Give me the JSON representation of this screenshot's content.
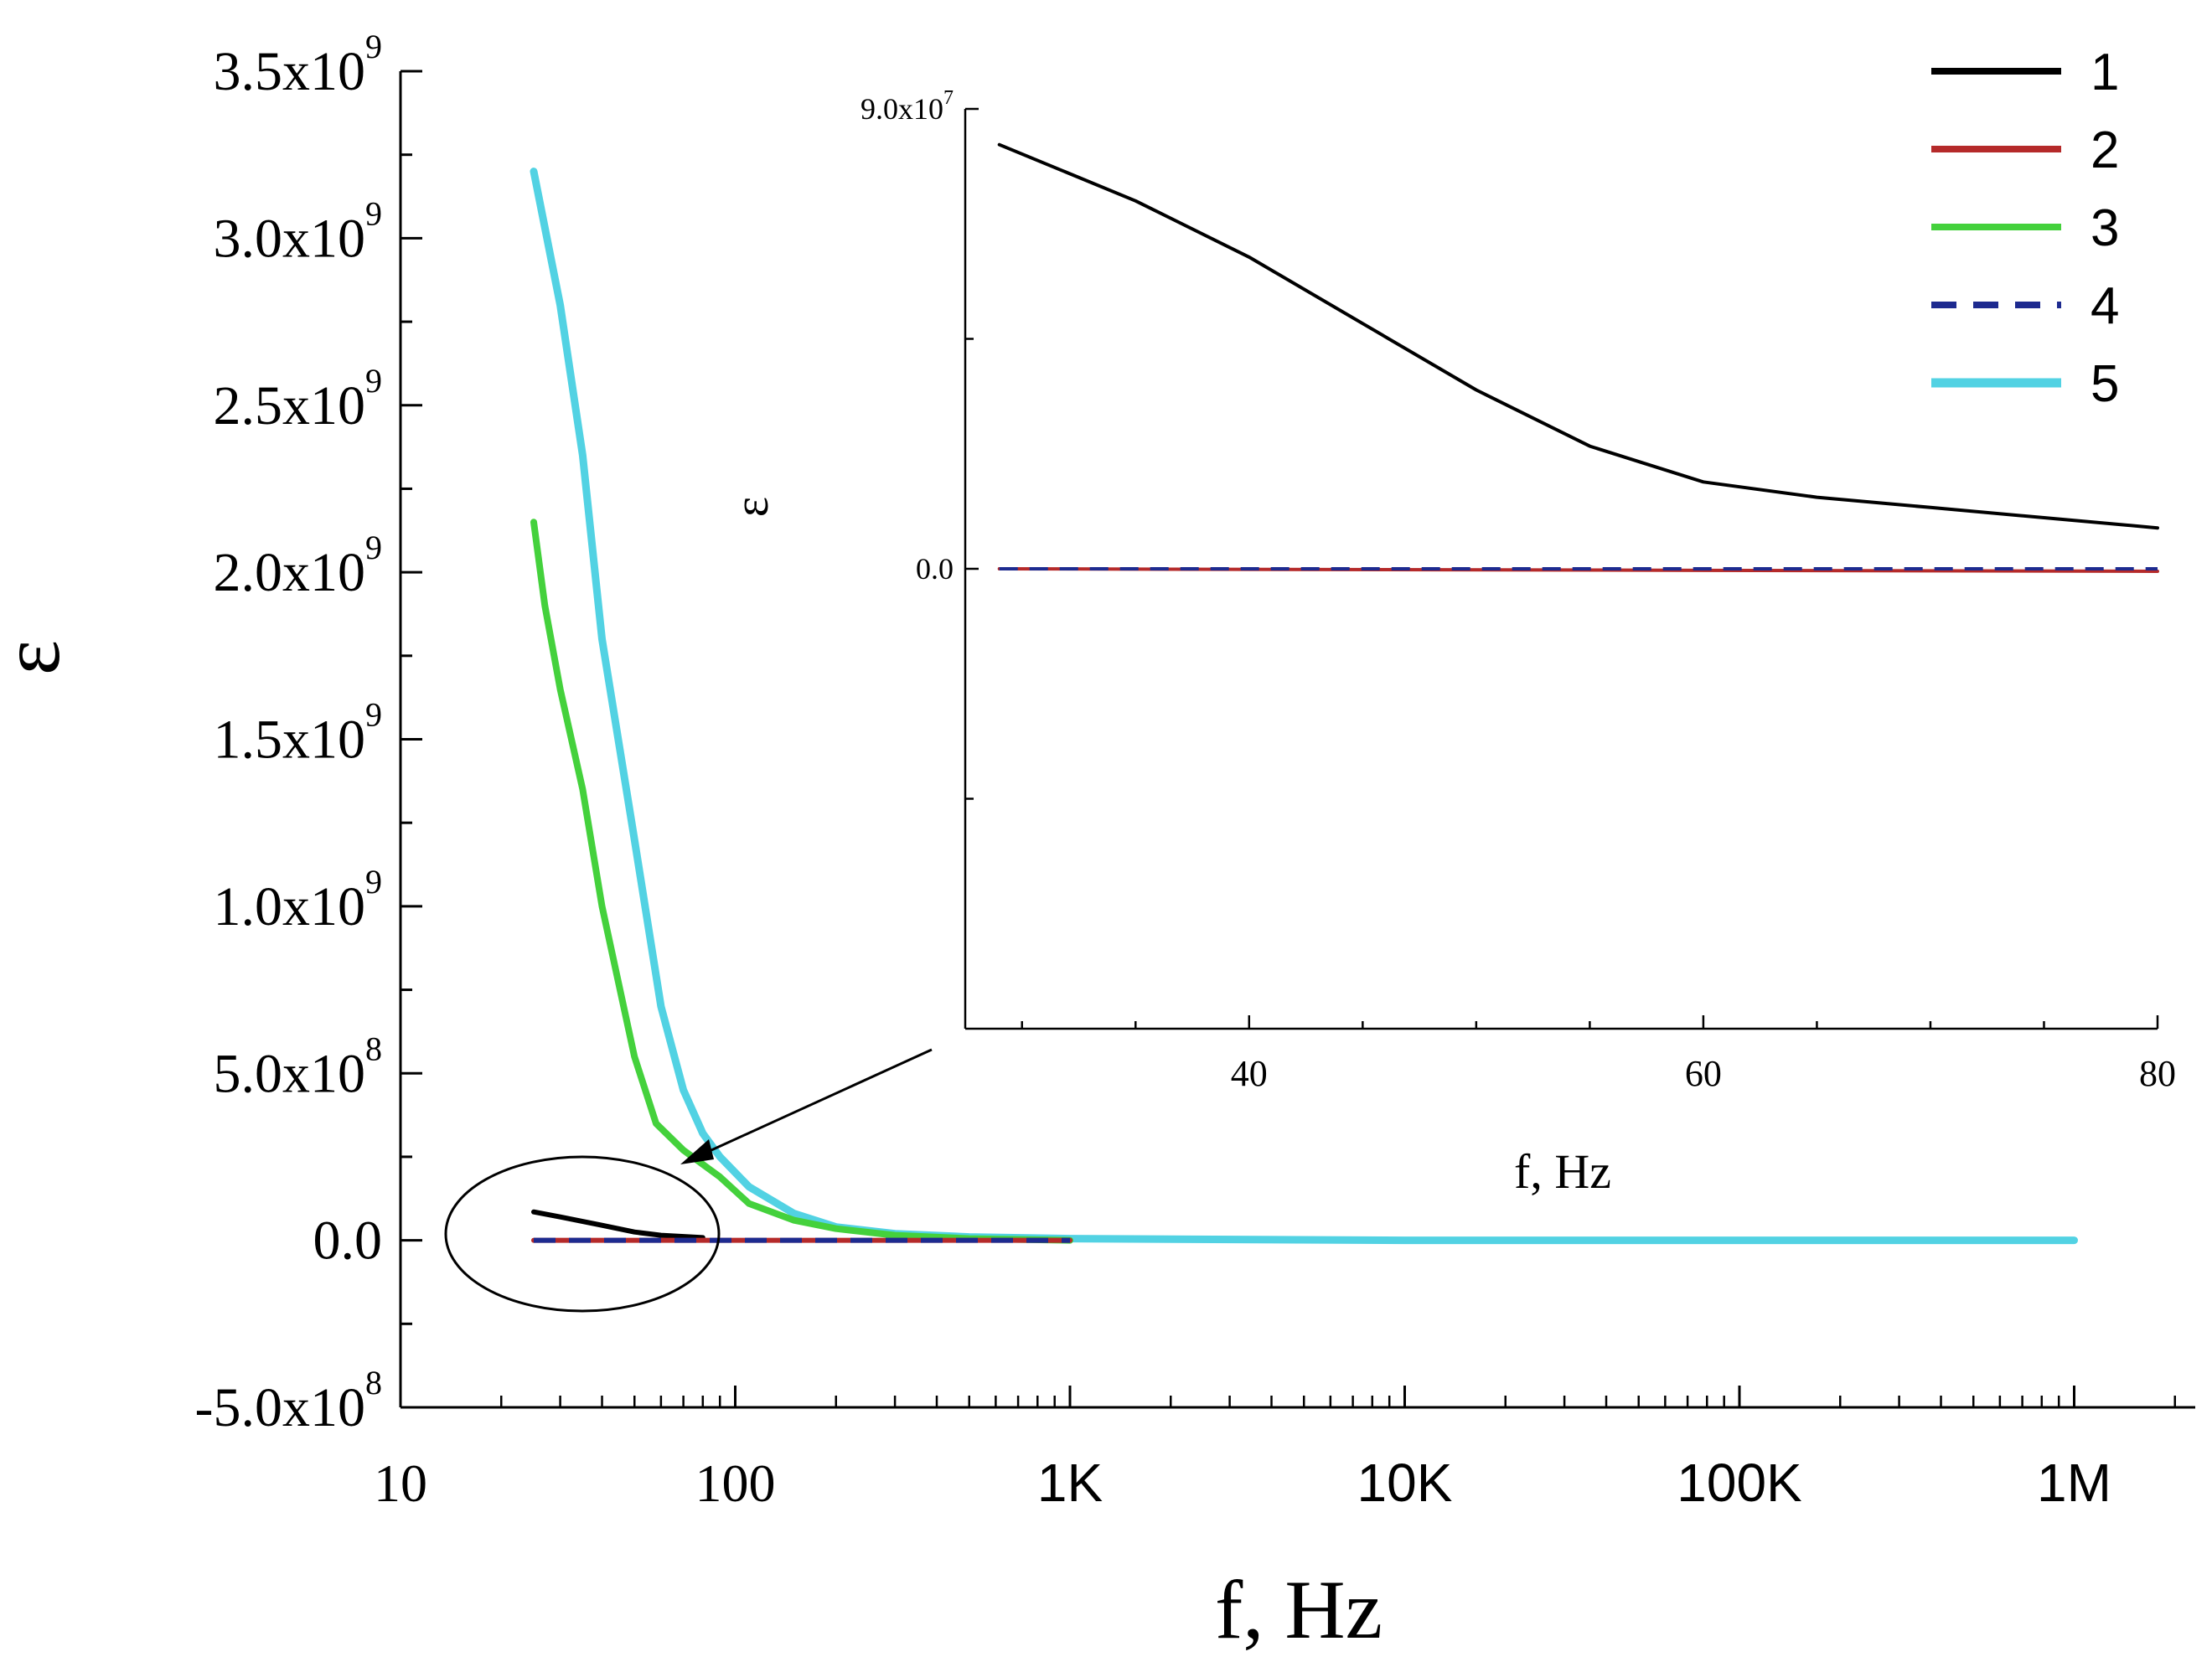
{
  "chart_data": [
    {
      "id": "main",
      "type": "line",
      "x_scale": "log",
      "xlabel": "f, Hz",
      "ylabel": "ε",
      "xlim": [
        10,
        2300000
      ],
      "ylim": [
        -500000000,
        3500000000
      ],
      "x_ticks": [
        {
          "value": 10,
          "label": "10"
        },
        {
          "value": 100,
          "label": "100"
        },
        {
          "value": 1000,
          "label": "1K"
        },
        {
          "value": 10000,
          "label": "10K"
        },
        {
          "value": 100000,
          "label": "100K"
        },
        {
          "value": 1000000,
          "label": "1M"
        }
      ],
      "y_ticks": [
        {
          "value": 3500000000,
          "mant": "3.5x10",
          "exp": "9"
        },
        {
          "value": 3000000000,
          "mant": "3.0x10",
          "exp": "9"
        },
        {
          "value": 2500000000,
          "mant": "2.5x10",
          "exp": "9"
        },
        {
          "value": 2000000000,
          "mant": "2.0x10",
          "exp": "9"
        },
        {
          "value": 1500000000,
          "mant": "1.5x10",
          "exp": "9"
        },
        {
          "value": 1000000000,
          "mant": "1.0x10",
          "exp": "9"
        },
        {
          "value": 500000000,
          "mant": "5.0x10",
          "exp": "8"
        },
        {
          "value": 0,
          "mant": "0.0",
          "exp": ""
        },
        {
          "value": -500000000,
          "mant": "-5.0x10",
          "exp": "8"
        }
      ],
      "series": [
        {
          "name": "1",
          "color": "#000000",
          "dash": false,
          "width": 6,
          "points": [
            [
              25,
              85000000
            ],
            [
              30,
              70000000
            ],
            [
              40,
              45000000
            ],
            [
              50,
              25000000
            ],
            [
              60,
              15000000
            ],
            [
              80,
              8000000
            ]
          ]
        },
        {
          "name": "2",
          "color": "#b52a2a",
          "dash": false,
          "width": 6,
          "points": [
            [
              25,
              0
            ],
            [
              1000,
              0
            ]
          ]
        },
        {
          "name": "3",
          "color": "#44d13c",
          "dash": false,
          "width": 8,
          "points": [
            [
              25,
              2150000000
            ],
            [
              27,
              1900000000
            ],
            [
              30,
              1650000000
            ],
            [
              35,
              1350000000
            ],
            [
              40,
              1000000000
            ],
            [
              50,
              550000000
            ],
            [
              58,
              350000000
            ],
            [
              70,
              270000000
            ],
            [
              90,
              190000000
            ],
            [
              110,
              110000000
            ],
            [
              150,
              60000000
            ],
            [
              200,
              35000000
            ],
            [
              300,
              15000000
            ],
            [
              500,
              5000000
            ],
            [
              1000,
              0
            ]
          ]
        },
        {
          "name": "4",
          "color": "#1d2a8f",
          "dash": true,
          "width": 6,
          "points": [
            [
              25,
              0
            ],
            [
              1000,
              0
            ]
          ]
        },
        {
          "name": "5",
          "color": "#52d2e3",
          "dash": false,
          "width": 9,
          "points": [
            [
              25,
              3200000000
            ],
            [
              30,
              2800000000
            ],
            [
              35,
              2350000000
            ],
            [
              40,
              1800000000
            ],
            [
              50,
              1200000000
            ],
            [
              60,
              700000000
            ],
            [
              70,
              450000000
            ],
            [
              80,
              320000000
            ],
            [
              90,
              250000000
            ],
            [
              110,
              160000000
            ],
            [
              150,
              80000000
            ],
            [
              200,
              40000000
            ],
            [
              300,
              20000000
            ],
            [
              500,
              10000000
            ],
            [
              1000,
              5000000
            ],
            [
              10000,
              0
            ],
            [
              1000000,
              0
            ]
          ]
        }
      ],
      "legend": {
        "placement": "top-right",
        "entries": [
          "1",
          "2",
          "3",
          "4",
          "5"
        ]
      },
      "annotation": "ellipse around low-frequency region with arrow pointing to inset"
    },
    {
      "id": "inset",
      "type": "line",
      "x_scale": "linear",
      "xlabel": "f, Hz",
      "ylabel": "ε",
      "xlim": [
        27.5,
        80
      ],
      "ylim": [
        -90000000,
        90000000
      ],
      "x_ticks": [
        {
          "value": 40,
          "label": "40"
        },
        {
          "value": 60,
          "label": "60"
        },
        {
          "value": 80,
          "label": "80"
        }
      ],
      "x_minor_ticks": [
        30,
        35,
        45,
        50,
        55,
        65,
        70,
        75
      ],
      "y_ticks": [
        {
          "value": 90000000,
          "mant": "9.0x10",
          "exp": "7"
        },
        {
          "value": 0,
          "mant": "0.0",
          "exp": ""
        }
      ],
      "y_minor_ticks": [
        45000000,
        -45000000
      ],
      "series": [
        {
          "name": "1",
          "color": "#000000",
          "dash": false,
          "width": 4,
          "points": [
            [
              29,
              83000000
            ],
            [
              35,
              72000000
            ],
            [
              40,
              61000000
            ],
            [
              45,
              48000000
            ],
            [
              50,
              35000000
            ],
            [
              55,
              24000000
            ],
            [
              60,
              17000000
            ],
            [
              65,
              14000000
            ],
            [
              70,
              12000000
            ],
            [
              75,
              10000000
            ],
            [
              80,
              8000000
            ]
          ]
        },
        {
          "name": "2",
          "color": "#b52a2a",
          "dash": false,
          "width": 4,
          "points": [
            [
              29,
              0
            ],
            [
              80,
              -500000
            ]
          ]
        },
        {
          "name": "4",
          "color": "#1d2a8f",
          "dash": true,
          "width": 4,
          "points": [
            [
              29,
              0
            ],
            [
              80,
              0
            ]
          ]
        }
      ]
    }
  ]
}
